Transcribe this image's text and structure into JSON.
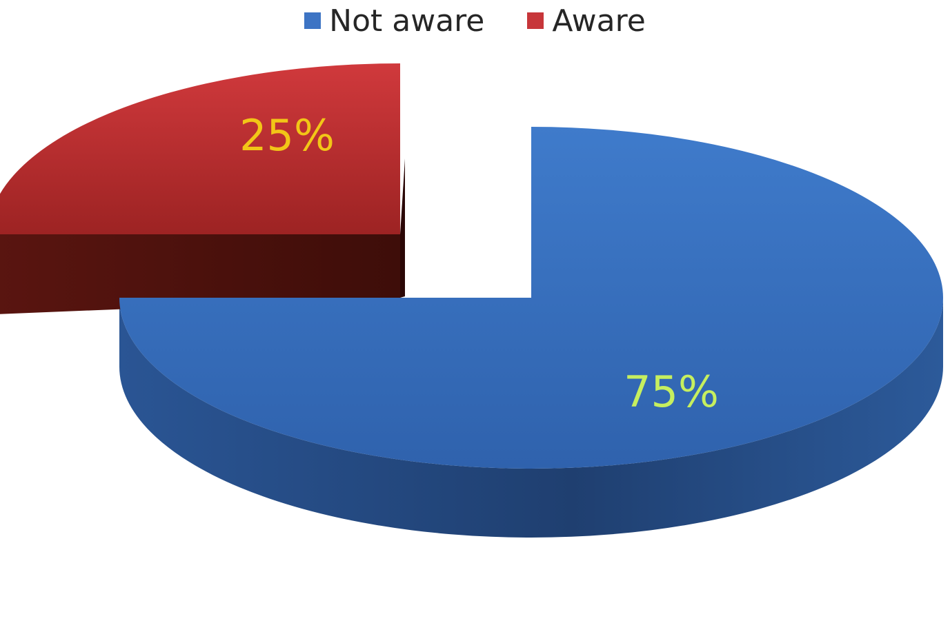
{
  "chart_data": {
    "type": "pie",
    "style": "3d-exploded",
    "title": "",
    "slices": [
      {
        "name": "Not aware",
        "value": 75,
        "label": "75%",
        "color": "#3d74c4",
        "label_color": "#c6ef5f"
      },
      {
        "name": "Aware",
        "value": 25,
        "label": "25%",
        "color": "#c7363a",
        "label_color": "#f2c617"
      }
    ],
    "legend_position": "top"
  }
}
